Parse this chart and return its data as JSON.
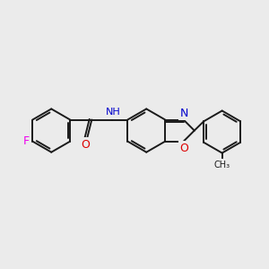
{
  "background_color": "#ebebeb",
  "bond_color": "#1a1a1a",
  "bond_width": 1.4,
  "atom_colors": {
    "F": "#ee00ee",
    "O": "#dd0000",
    "N": "#0000cc",
    "C": "#1a1a1a",
    "H": "#444444"
  },
  "font_size": 8.5,
  "fig_size": [
    3.0,
    3.0
  ],
  "dpi": 100
}
